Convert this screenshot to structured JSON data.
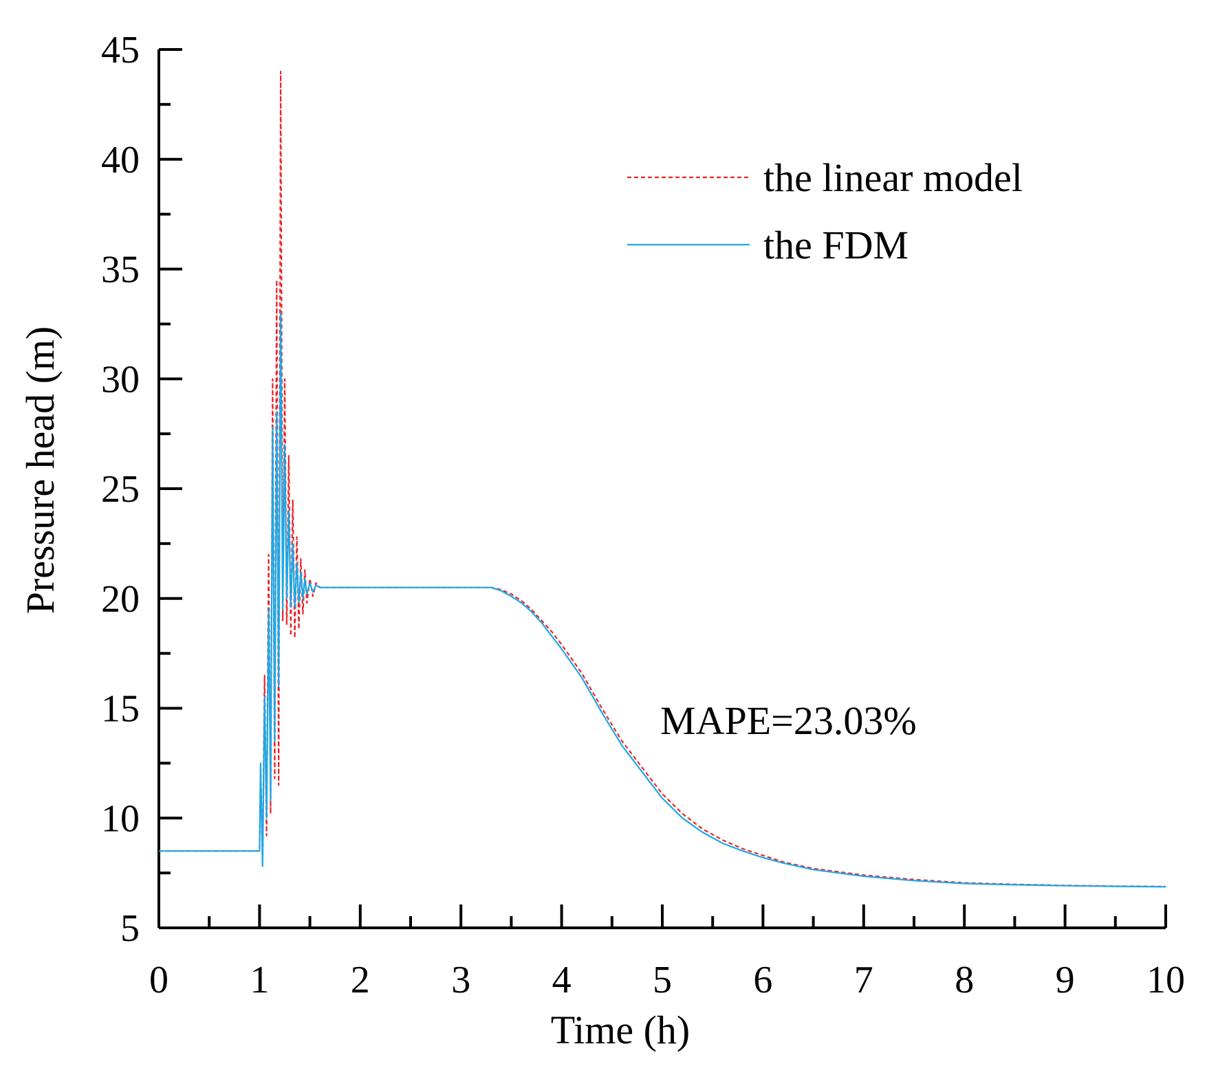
{
  "chart_data": {
    "type": "line",
    "title": "",
    "xlabel": "Time (h)",
    "ylabel": "Pressure head (m)",
    "xlim": [
      0,
      10
    ],
    "ylim": [
      5,
      45
    ],
    "xticks": [
      0,
      1,
      2,
      3,
      4,
      5,
      6,
      7,
      8,
      9,
      10
    ],
    "yticks": [
      5,
      10,
      15,
      20,
      25,
      30,
      35,
      40,
      45
    ],
    "grid": false,
    "legend_position": "top-right",
    "annotation": "MAPE=23.03%",
    "series": [
      {
        "name": "the linear model",
        "color": "#e8262a",
        "style": "dashed",
        "x": [
          0,
          1.0,
          1.01,
          1.03,
          1.05,
          1.07,
          1.09,
          1.11,
          1.13,
          1.15,
          1.17,
          1.19,
          1.21,
          1.23,
          1.25,
          1.27,
          1.29,
          1.31,
          1.33,
          1.35,
          1.37,
          1.39,
          1.41,
          1.43,
          1.45,
          1.47,
          1.5,
          1.53,
          1.56,
          1.6,
          1.65,
          1.7,
          2.0,
          2.5,
          3.0,
          3.3,
          3.4,
          3.5,
          3.6,
          3.7,
          3.8,
          3.9,
          4.0,
          4.2,
          4.4,
          4.6,
          4.8,
          5.0,
          5.2,
          5.4,
          5.6,
          5.8,
          6.0,
          6.2,
          6.5,
          7.0,
          7.5,
          8.0,
          8.5,
          9.0,
          9.5,
          10.0
        ],
        "values": [
          8.5,
          8.5,
          12.2,
          8.0,
          16.5,
          9.2,
          22.0,
          10.2,
          30.0,
          11.8,
          34.5,
          11.5,
          44.0,
          19.0,
          30.0,
          18.8,
          26.5,
          18.3,
          24.5,
          18.2,
          22.8,
          18.6,
          21.8,
          19.3,
          21.3,
          19.8,
          20.9,
          20.1,
          20.7,
          20.5,
          20.5,
          20.5,
          20.5,
          20.5,
          20.5,
          20.5,
          20.4,
          20.2,
          19.9,
          19.5,
          19.0,
          18.5,
          17.9,
          16.6,
          15.0,
          13.5,
          12.3,
          11.1,
          10.2,
          9.5,
          9.0,
          8.6,
          8.3,
          8.0,
          7.7,
          7.4,
          7.2,
          7.05,
          6.98,
          6.93,
          6.9,
          6.88
        ]
      },
      {
        "name": "the FDM",
        "color": "#1ea8e6",
        "style": "solid",
        "x": [
          0,
          1.0,
          1.01,
          1.03,
          1.05,
          1.07,
          1.09,
          1.11,
          1.13,
          1.15,
          1.17,
          1.19,
          1.21,
          1.23,
          1.25,
          1.27,
          1.29,
          1.31,
          1.33,
          1.35,
          1.37,
          1.39,
          1.41,
          1.43,
          1.45,
          1.47,
          1.5,
          1.53,
          1.56,
          1.6,
          1.65,
          1.7,
          2.0,
          2.5,
          3.0,
          3.3,
          3.4,
          3.5,
          3.6,
          3.7,
          3.8,
          3.9,
          4.0,
          4.2,
          4.4,
          4.6,
          4.8,
          5.0,
          5.2,
          5.4,
          5.6,
          5.8,
          6.0,
          6.2,
          6.5,
          7.0,
          7.5,
          8.0,
          8.5,
          9.0,
          9.5,
          10.0
        ],
        "values": [
          8.5,
          8.5,
          12.5,
          7.8,
          15.5,
          10.0,
          19.5,
          10.8,
          27.8,
          13.5,
          28.5,
          16.0,
          33.0,
          19.5,
          27.0,
          20.0,
          24.0,
          19.6,
          22.5,
          19.6,
          21.6,
          19.8,
          21.2,
          20.0,
          20.9,
          20.2,
          20.7,
          20.3,
          20.6,
          20.5,
          20.5,
          20.5,
          20.5,
          20.5,
          20.5,
          20.5,
          20.35,
          20.1,
          19.8,
          19.4,
          18.9,
          18.3,
          17.7,
          16.4,
          14.8,
          13.3,
          12.1,
          10.9,
          10.0,
          9.35,
          8.85,
          8.5,
          8.2,
          7.95,
          7.65,
          7.35,
          7.15,
          7.02,
          6.96,
          6.92,
          6.89,
          6.87
        ]
      }
    ]
  }
}
